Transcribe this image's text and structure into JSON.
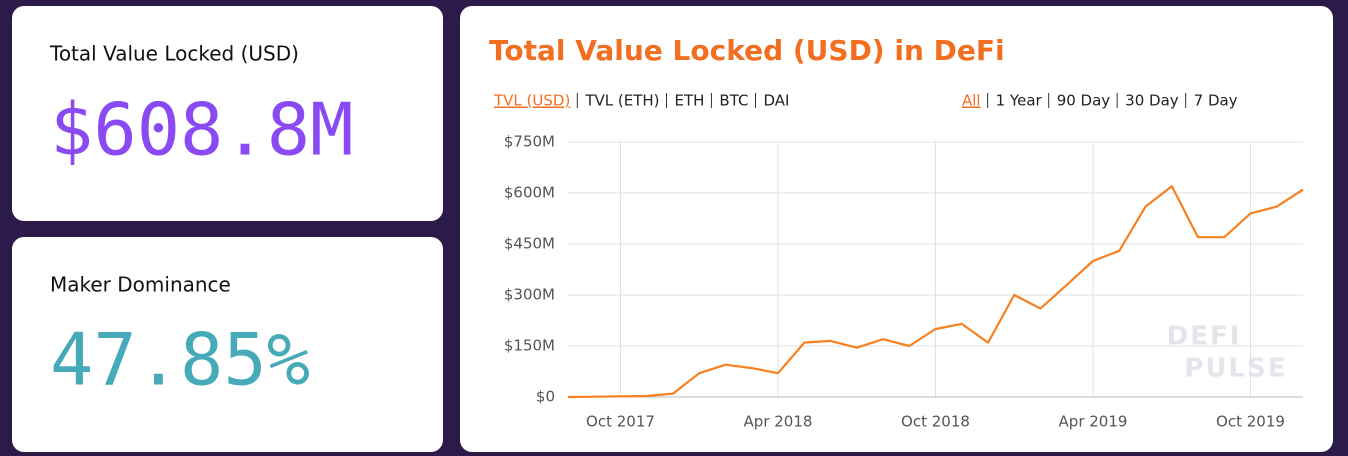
{
  "cards": [
    {
      "label": "Total Value Locked (USD)",
      "value": "$608.8M"
    },
    {
      "label": "Maker Dominance",
      "value": "47.85%"
    }
  ],
  "chart_data": {
    "type": "line",
    "title": "Total Value Locked (USD) in DeFi",
    "tabs": [
      "TVL (USD)",
      "TVL (ETH)",
      "ETH",
      "BTC",
      "DAI"
    ],
    "ranges": [
      "All",
      "1 Year",
      "90 Day",
      "30 Day",
      "7 Day"
    ],
    "watermark": [
      "DEFI",
      "PULSE"
    ],
    "x": [
      "2017-08",
      "2017-09",
      "2017-10",
      "2017-11",
      "2017-12",
      "2018-01",
      "2018-02",
      "2018-03",
      "2018-04",
      "2018-05",
      "2018-06",
      "2018-07",
      "2018-08",
      "2018-09",
      "2018-10",
      "2018-11",
      "2018-12",
      "2019-01",
      "2019-02",
      "2019-03",
      "2019-04",
      "2019-05",
      "2019-06",
      "2019-07",
      "2019-08",
      "2019-09",
      "2019-10",
      "2019-11",
      "2019-12"
    ],
    "series": [
      {
        "name": "TVL (USD)",
        "color": "#f7801f",
        "values": [
          0,
          1,
          2,
          3,
          10,
          70,
          95,
          85,
          70,
          160,
          165,
          145,
          170,
          150,
          200,
          215,
          160,
          300,
          260,
          330,
          400,
          430,
          560,
          620,
          470,
          470,
          540,
          560,
          610
        ]
      }
    ],
    "xlim": [
      "2017-08",
      "2019-12"
    ],
    "xticks": [
      {
        "value": "2017-10",
        "label": "Oct 2017"
      },
      {
        "value": "2018-04",
        "label": "Apr 2018"
      },
      {
        "value": "2018-10",
        "label": "Oct 2018"
      },
      {
        "value": "2019-04",
        "label": "Apr 2019"
      },
      {
        "value": "2019-10",
        "label": "Oct 2019"
      }
    ],
    "ylim": [
      0,
      750
    ],
    "yticks": [
      {
        "value": 0,
        "label": "$0"
      },
      {
        "value": 150,
        "label": "$150M"
      },
      {
        "value": 300,
        "label": "$300M"
      },
      {
        "value": 450,
        "label": "$450M"
      },
      {
        "value": 600,
        "label": "$600M"
      },
      {
        "value": 750,
        "label": "$750M"
      }
    ],
    "grid": true
  }
}
